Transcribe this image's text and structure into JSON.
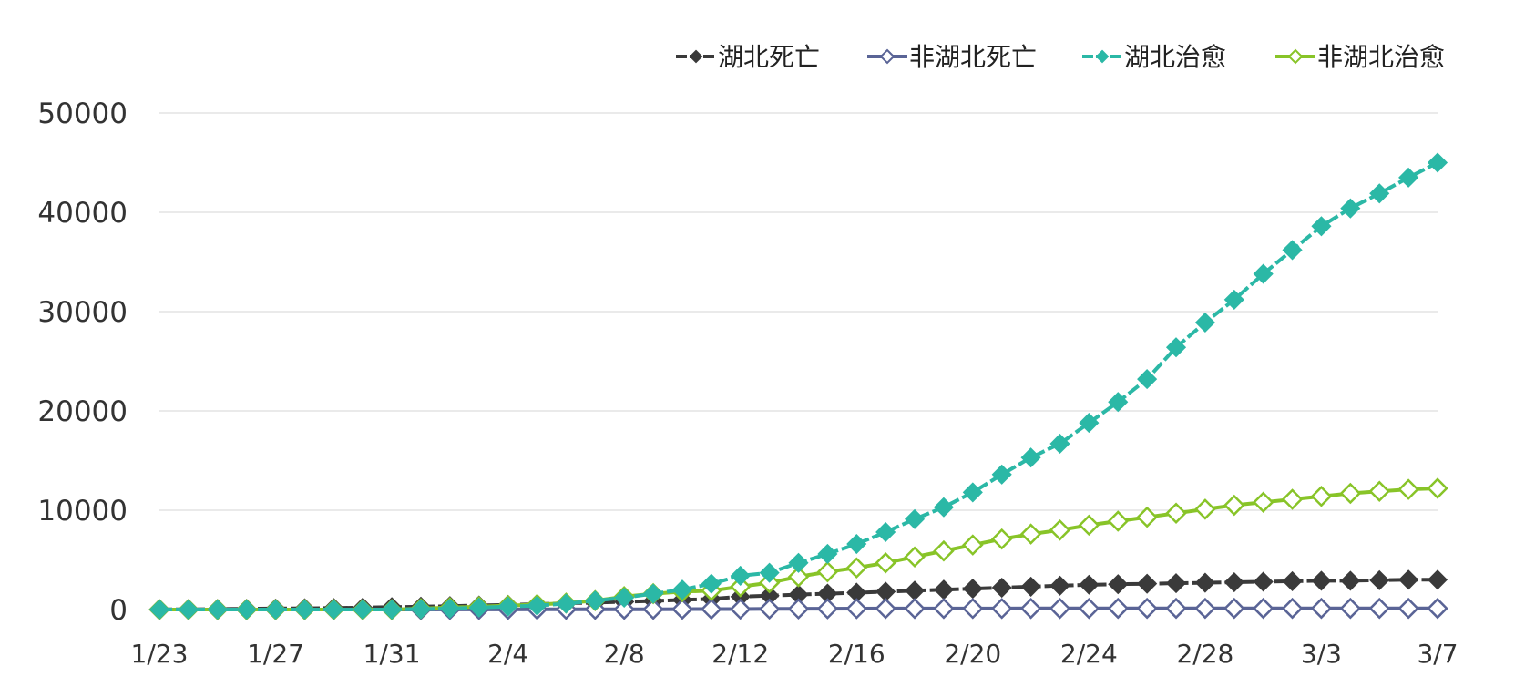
{
  "chart_data": {
    "type": "line",
    "title": "",
    "xlabel": "",
    "ylabel": "",
    "ylim": [
      0,
      50000
    ],
    "yticks": [
      0,
      10000,
      20000,
      30000,
      40000,
      50000
    ],
    "grid": true,
    "legend_position": "top-right",
    "x": [
      "1/23",
      "1/24",
      "1/25",
      "1/26",
      "1/27",
      "1/28",
      "1/29",
      "1/30",
      "1/31",
      "2/1",
      "2/2",
      "2/3",
      "2/4",
      "2/5",
      "2/6",
      "2/7",
      "2/8",
      "2/9",
      "2/10",
      "2/11",
      "2/12",
      "2/13",
      "2/14",
      "2/15",
      "2/16",
      "2/17",
      "2/18",
      "2/19",
      "2/20",
      "2/21",
      "2/22",
      "2/23",
      "2/24",
      "2/25",
      "2/26",
      "2/27",
      "2/28",
      "2/29",
      "3/1",
      "3/2",
      "3/3",
      "3/4",
      "3/5",
      "3/6",
      "3/7"
    ],
    "xtick_labels": [
      "1/23",
      "1/27",
      "1/31",
      "2/4",
      "2/8",
      "2/12",
      "2/16",
      "2/20",
      "2/24",
      "2/28",
      "3/3",
      "3/7"
    ],
    "series": [
      {
        "name": "湖北死亡",
        "color": "#3a3a3a",
        "marker": "diamond-filled",
        "line_style": "dashed",
        "values": [
          20,
          20,
          50,
          80,
          100,
          130,
          160,
          200,
          250,
          290,
          350,
          410,
          480,
          550,
          630,
          700,
          780,
          870,
          970,
          1070,
          1300,
          1400,
          1500,
          1600,
          1700,
          1800,
          1900,
          2000,
          2100,
          2200,
          2300,
          2400,
          2500,
          2550,
          2600,
          2650,
          2700,
          2750,
          2800,
          2850,
          2900,
          2900,
          2950,
          3000,
          3000
        ]
      },
      {
        "name": "非湖北死亡",
        "color": "#5a6496",
        "marker": "diamond-open",
        "line_style": "solid",
        "values": [
          0,
          0,
          0,
          0,
          0,
          0,
          0,
          0,
          0,
          0,
          10,
          10,
          10,
          20,
          20,
          20,
          30,
          30,
          40,
          50,
          50,
          60,
          70,
          80,
          90,
          100,
          100,
          100,
          100,
          100,
          110,
          110,
          110,
          120,
          120,
          120,
          120,
          120,
          120,
          120,
          120,
          120,
          120,
          120,
          120
        ]
      },
      {
        "name": "湖北治愈",
        "color": "#2bb8a6",
        "marker": "diamond-filled",
        "line_style": "dashed",
        "values": [
          0,
          0,
          0,
          0,
          0,
          0,
          0,
          0,
          0,
          50,
          100,
          200,
          300,
          400,
          600,
          900,
          1200,
          1600,
          2000,
          2600,
          3400,
          3700,
          4700,
          5600,
          6600,
          7800,
          9100,
          10300,
          11800,
          13600,
          15300,
          16700,
          18800,
          20900,
          23200,
          26400,
          28900,
          31200,
          33800,
          36200,
          38600,
          40400,
          41900,
          43500,
          45000
        ]
      },
      {
        "name": "非湖北治愈",
        "color": "#88c428",
        "marker": "diamond-open",
        "line_style": "solid",
        "values": [
          0,
          0,
          0,
          0,
          0,
          0,
          0,
          0,
          0,
          100,
          200,
          300,
          400,
          500,
          650,
          900,
          1300,
          1600,
          1800,
          1900,
          2300,
          2700,
          3300,
          3800,
          4200,
          4700,
          5300,
          5900,
          6500,
          7100,
          7600,
          8000,
          8500,
          8900,
          9300,
          9700,
          10100,
          10500,
          10800,
          11100,
          11400,
          11700,
          11900,
          12100,
          12200
        ]
      }
    ]
  }
}
